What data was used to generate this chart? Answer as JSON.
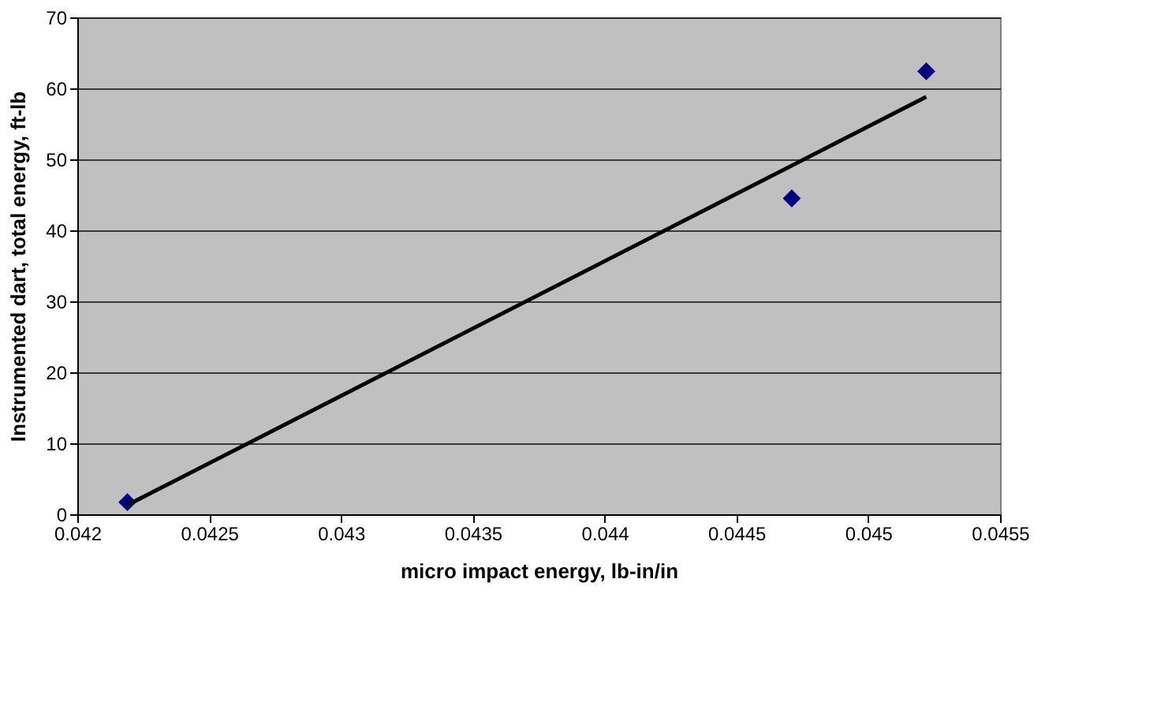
{
  "chart_data": {
    "type": "scatter",
    "xlabel": "micro impact energy, lb-in/in",
    "ylabel": "Instrumented dart, total energy, ft-lb",
    "xlim": [
      0.042,
      0.0455
    ],
    "xticks": [
      0.042,
      0.0425,
      0.043,
      0.0435,
      0.044,
      0.0445,
      0.045,
      0.0455
    ],
    "ylim": [
      0,
      70
    ],
    "yticks": [
      0,
      10,
      20,
      30,
      40,
      50,
      60,
      70
    ],
    "grid": "y",
    "legend": false,
    "series": [
      {
        "color": "#000080",
        "marker": "diamond",
        "x": [
          0.04219,
          0.04471,
          0.04522
        ],
        "values": [
          1.7,
          44.5,
          62.4
        ]
      },
      {
        "type": "line",
        "color": "#000000",
        "line_style": "solid",
        "x": [
          0.04219,
          0.04522
        ],
        "values": [
          1.3,
          58.8
        ]
      }
    ]
  }
}
